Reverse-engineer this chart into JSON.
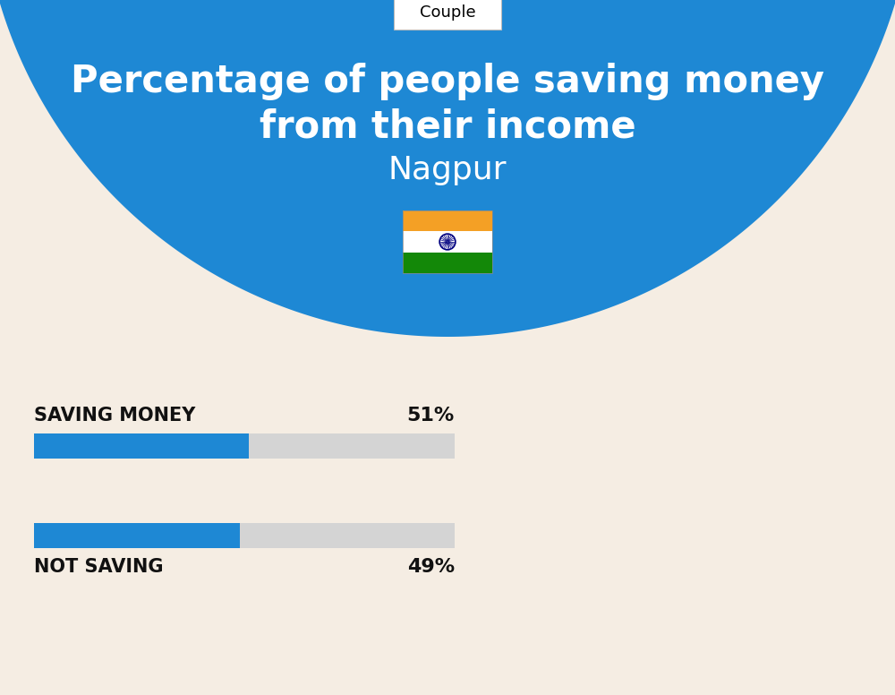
{
  "title_line1": "Percentage of people saving money",
  "title_line2": "from their income",
  "city": "Nagpur",
  "tab_label": "Couple",
  "bg_top_color": "#1E88D4",
  "bg_bottom_color": "#F5EDE3",
  "bar_color": "#1E88D4",
  "bar_bg_color": "#D4D4D4",
  "categories": [
    "SAVING MONEY",
    "NOT SAVING"
  ],
  "values": [
    51,
    49
  ],
  "title_color": "#FFFFFF",
  "city_color": "#FFFFFF",
  "label_color": "#111111",
  "value_color": "#111111",
  "title_fontsize": 30,
  "city_fontsize": 26,
  "tab_fontsize": 13,
  "label_fontsize": 15,
  "value_fontsize": 16,
  "fig_width": 10.0,
  "fig_height": 7.76,
  "flag_saffron": "#F4A025",
  "flag_white": "#FFFFFF",
  "flag_green": "#138808",
  "flag_navy": "#000080"
}
